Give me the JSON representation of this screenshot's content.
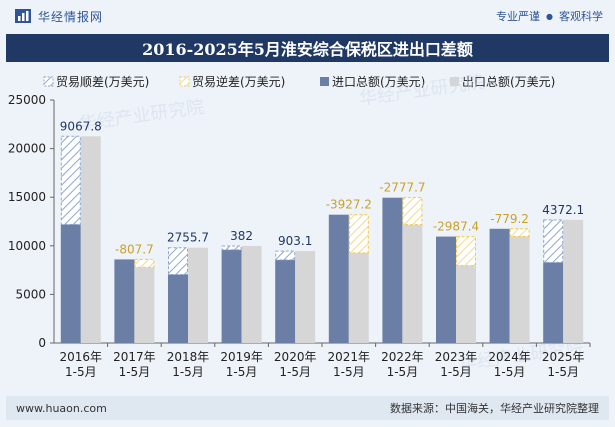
{
  "header": {
    "brand": "华经情报网",
    "slogan_left": "专业严谨",
    "slogan_dot": "●",
    "slogan_right": "客观科学"
  },
  "footer": {
    "url": "www.huaon.com",
    "source": "数据来源：中国海关，华经产业研究院整理"
  },
  "watermark": "华经产业研究院",
  "colors": {
    "import": "#6b7fa6",
    "export": "#d6d6d6",
    "surplus": "#8fa7cf",
    "deficit": "#f2c94c",
    "title_bg": "#1f3864"
  },
  "chart_data": {
    "type": "bar",
    "title": "2016-2025年5月淮安综合保税区进出口差额",
    "categories": [
      [
        "2016年",
        "1-5月"
      ],
      [
        "2017年",
        "1-5月"
      ],
      [
        "2018年",
        "1-5月"
      ],
      [
        "2019年",
        "1-5月"
      ],
      [
        "2020年",
        "1-5月"
      ],
      [
        "2021年",
        "1-5月"
      ],
      [
        "2022年",
        "1-5月"
      ],
      [
        "2023年",
        "1-5月"
      ],
      [
        "2024年",
        "1-5月"
      ],
      [
        "2025年",
        "1-5月"
      ]
    ],
    "ylim": [
      0,
      25000
    ],
    "yticks": [
      0,
      5000,
      10000,
      15000,
      20000,
      25000
    ],
    "legend": [
      "贸易顺差(万美元)",
      "贸易逆差(万美元)",
      "进口总额(万美元)",
      "出口总额(万美元)"
    ],
    "series": [
      {
        "name": "进口总额(万美元)",
        "values": [
          12200,
          8600,
          7050,
          9600,
          8550,
          13200,
          14950,
          10950,
          11750,
          8300
        ]
      },
      {
        "name": "出口总额(万美元)",
        "values": [
          21267.8,
          7792.3,
          9805.7,
          9982,
          9453.1,
          9272.8,
          12172.3,
          7962.6,
          10970.8,
          12672.1
        ]
      }
    ],
    "balance": [
      9067.8,
      -807.7,
      2755.7,
      382,
      903.1,
      -3927.2,
      -2777.7,
      -2987.4,
      -779.2,
      4372.1
    ],
    "balance_labels": [
      "9067.8",
      "-807.7",
      "2755.7",
      "382",
      "903.1",
      "-3927.2",
      "-2777.7",
      "-2987.4",
      "-779.2",
      "4372.1"
    ]
  }
}
